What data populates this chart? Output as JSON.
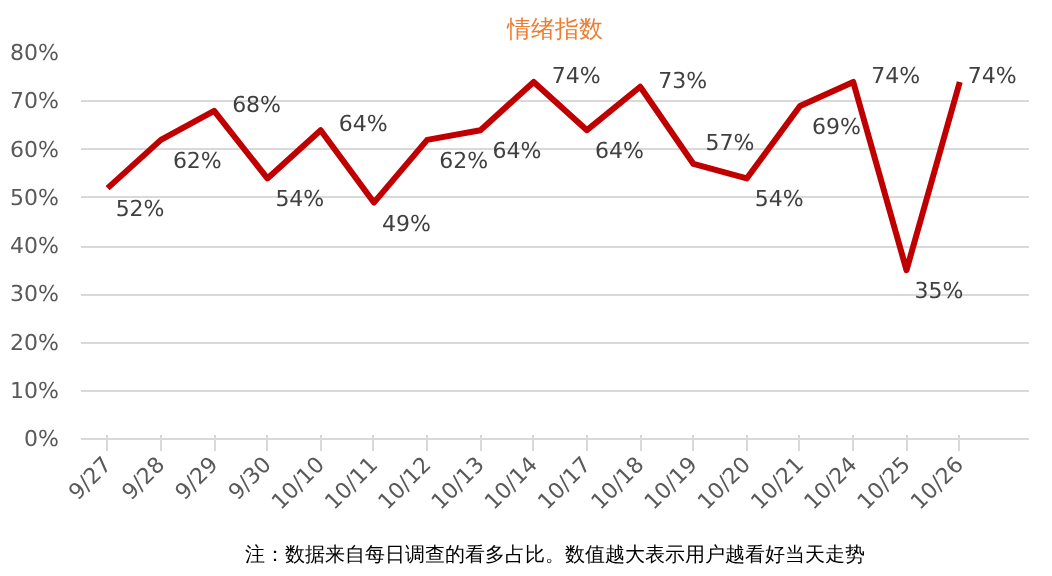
{
  "chart_data": {
    "type": "line",
    "title": "情绪指数",
    "categories": [
      "9/27",
      "9/28",
      "9/29",
      "9/30",
      "10/10",
      "10/11",
      "10/12",
      "10/13",
      "10/14",
      "10/17",
      "10/18",
      "10/19",
      "10/20",
      "10/21",
      "10/24",
      "10/25",
      "10/26"
    ],
    "series": [
      {
        "color": "#c00000",
        "values": [
          52,
          62,
          68,
          54,
          64,
          49,
          62,
          64,
          74,
          64,
          73,
          57,
          54,
          69,
          74,
          35,
          74
        ],
        "value_labels": [
          "52%",
          "62%",
          "68%",
          "54%",
          "64%",
          "49%",
          "62%",
          "64%",
          "74%",
          "64%",
          "73%",
          "57%",
          "54%",
          "69%",
          "74%",
          "35%",
          "74%"
        ]
      }
    ],
    "ylim": [
      0,
      80
    ],
    "yticks": [
      {
        "value": 0,
        "label": "0%"
      },
      {
        "value": 10,
        "label": "10%"
      },
      {
        "value": 20,
        "label": "20%"
      },
      {
        "value": 30,
        "label": "30%"
      },
      {
        "value": 40,
        "label": "40%"
      },
      {
        "value": 50,
        "label": "50%"
      },
      {
        "value": 60,
        "label": "60%"
      },
      {
        "value": 70,
        "label": "70%"
      },
      {
        "value": 80,
        "label": "80%"
      }
    ],
    "grid": "y",
    "marker": "none",
    "line_style": "solid",
    "annotations": [
      "注：数据来自每日调查的看多占比。数值越大表示用户越看好当天走势"
    ]
  }
}
